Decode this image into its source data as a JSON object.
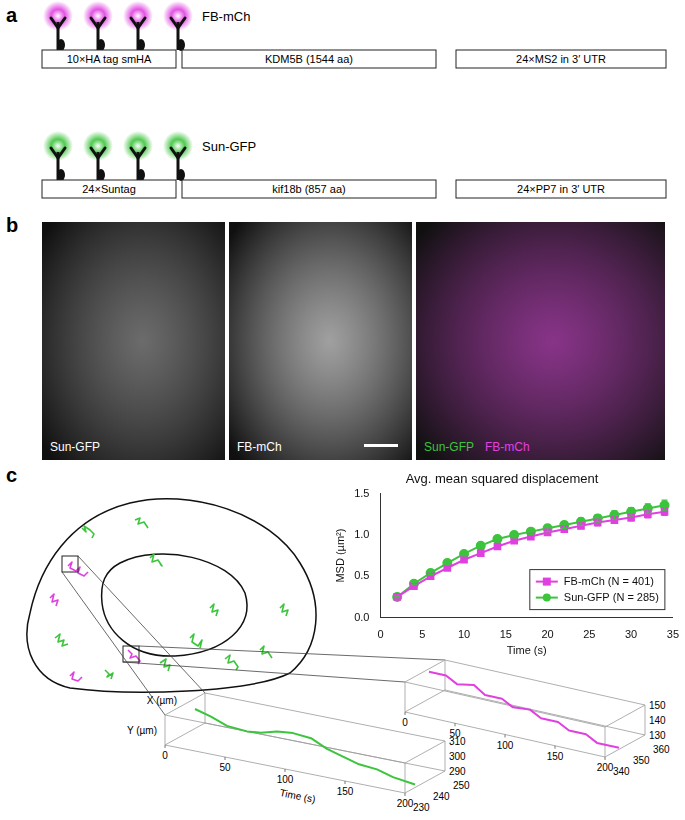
{
  "figure": {
    "a": {
      "label": "a",
      "constructs": [
        {
          "name": "FB-mCh",
          "color": "#e040e0",
          "probes": 4,
          "segments": [
            "10×HA tag smHA",
            "KDM5B (1544 aa)",
            "24×MS2 in 3′ UTR"
          ]
        },
        {
          "name": "Sun-GFP",
          "color": "#3cc43c",
          "probes": 4,
          "segments": [
            "24×Suntag",
            "kif18b (857 aa)",
            "24×PP7 in 3′ UTR"
          ]
        }
      ]
    },
    "b": {
      "label": "b",
      "images": [
        {
          "color": "#8a8a8a",
          "labels": [
            {
              "text": "Sun-GFP",
              "color": "#ffffff"
            }
          ]
        },
        {
          "color": "#d0d0d0",
          "labels": [
            {
              "text": "FB-mCh",
              "color": "#ffffff"
            }
          ]
        },
        {
          "color": "#b040b0",
          "labels": [
            {
              "text": "Sun-GFP",
              "color": "#3cc43c"
            },
            {
              "text": "FB-mCh",
              "color": "#e040e0"
            }
          ]
        }
      ]
    },
    "c": {
      "label": "c",
      "tracks": [
        {
          "color": "#e040e0",
          "x": [
            58,
            62,
            60,
            66,
            70,
            68,
            74,
            78
          ],
          "y": [
            78,
            74,
            80,
            83,
            79,
            85,
            88,
            84
          ]
        },
        {
          "color": "#e040e0",
          "x": [
            118,
            122,
            120,
            126,
            130,
            128
          ],
          "y": [
            162,
            166,
            170,
            168,
            173,
            176
          ]
        },
        {
          "color": "#e040e0",
          "x": [
            60,
            64,
            62,
            68,
            72
          ],
          "y": [
            188,
            184,
            191,
            193,
            189
          ]
        },
        {
          "color": "#e040e0",
          "x": [
            40,
            44,
            42,
            48,
            46
          ],
          "y": [
            110,
            106,
            114,
            112,
            118
          ]
        },
        {
          "color": "#3cc43c",
          "x": [
            72,
            76,
            74,
            80,
            84,
            82
          ],
          "y": [
            40,
            44,
            38,
            42,
            46,
            50
          ]
        },
        {
          "color": "#3cc43c",
          "x": [
            125,
            130,
            128,
            134,
            138
          ],
          "y": [
            32,
            30,
            36,
            34,
            40
          ]
        },
        {
          "color": "#3cc43c",
          "x": [
            140,
            144,
            142,
            148,
            152,
            150
          ],
          "y": [
            70,
            66,
            74,
            72,
            78,
            76
          ]
        },
        {
          "color": "#3cc43c",
          "x": [
            45,
            50,
            48,
            54,
            52,
            58
          ],
          "y": [
            150,
            146,
            154,
            152,
            158,
            156
          ]
        },
        {
          "color": "#3cc43c",
          "x": [
            150,
            156,
            154,
            160,
            158
          ],
          "y": [
            175,
            171,
            179,
            177,
            183
          ]
        },
        {
          "color": "#3cc43c",
          "x": [
            180,
            184,
            182,
            188,
            192,
            190
          ],
          "y": [
            150,
            146,
            154,
            158,
            152,
            160
          ]
        },
        {
          "color": "#3cc43c",
          "x": [
            200,
            204,
            202,
            208,
            206
          ],
          "y": [
            120,
            116,
            124,
            122,
            128
          ]
        },
        {
          "color": "#3cc43c",
          "x": [
            215,
            220,
            218,
            224,
            228,
            226
          ],
          "y": [
            171,
            167,
            175,
            173,
            179,
            182
          ]
        },
        {
          "color": "#3cc43c",
          "x": [
            250,
            254,
            252,
            258,
            262
          ],
          "y": [
            162,
            158,
            166,
            164,
            170
          ]
        },
        {
          "color": "#3cc43c",
          "x": [
            270,
            274,
            272,
            278,
            276
          ],
          "y": [
            120,
            116,
            124,
            122,
            128
          ]
        },
        {
          "color": "#3cc43c",
          "x": [
            95,
            99,
            97,
            103,
            101
          ],
          "y": [
            182,
            186,
            189,
            185,
            191
          ]
        }
      ],
      "insets": [
        {
          "color": "#e040e0",
          "time": [
            0,
            15,
            30,
            45,
            60,
            75,
            90,
            105,
            120,
            135,
            150,
            165,
            180,
            200
          ],
          "x": [
            352,
            353,
            351,
            352,
            350,
            351,
            349,
            350,
            348,
            349,
            347,
            348,
            346,
            347
          ],
          "y": [
            148,
            147,
            145,
            146,
            143,
            142,
            140,
            140,
            138,
            137,
            135,
            134,
            132,
            131
          ],
          "tlim": [
            0,
            200
          ],
          "tticks": [
            0,
            50,
            100,
            150,
            200
          ],
          "xlim": [
            340,
            360
          ],
          "xticks": [
            340,
            350,
            360
          ],
          "ylim": [
            130,
            150
          ],
          "yticks": [
            130,
            140,
            150
          ]
        },
        {
          "color": "#3cc43c",
          "time": [
            0,
            15,
            30,
            45,
            60,
            75,
            90,
            105,
            120,
            135,
            150,
            165,
            180,
            200
          ],
          "x": [
            245,
            244,
            243,
            244,
            242,
            241,
            240,
            240,
            239,
            238,
            237,
            237,
            236,
            235
          ],
          "y": [
            303,
            301,
            298,
            296,
            299,
            303,
            305,
            304,
            300,
            298,
            296,
            295,
            293,
            292
          ],
          "tlim": [
            0,
            200
          ],
          "tticks": [
            0,
            50,
            100,
            150,
            200
          ],
          "xlim": [
            230,
            250
          ],
          "xticks": [
            230,
            240,
            250
          ],
          "ylim": [
            290,
            310
          ],
          "yticks": [
            290,
            300,
            310
          ],
          "t_label": "Time (s)",
          "x_label": "X (µm)",
          "y_label": "Y (µm)"
        }
      ]
    }
  },
  "chart_data": {
    "type": "line",
    "title": "Avg. mean squared displacement",
    "x_label": "Time (s)",
    "y_label": "MSD (µm²)",
    "x": [
      2,
      4,
      6,
      8,
      10,
      12,
      14,
      16,
      18,
      20,
      22,
      24,
      26,
      28,
      30,
      32,
      34
    ],
    "xlim": [
      0,
      35
    ],
    "xticks": [
      0,
      5,
      10,
      15,
      20,
      25,
      30,
      35
    ],
    "ylim": [
      0,
      1.5
    ],
    "yticks": [
      {
        "value": 0,
        "label": "0.0"
      },
      0.5,
      {
        "value": 1,
        "label": "1.0"
      },
      1.5
    ],
    "grid": false,
    "legend": "lower right",
    "series": [
      {
        "name": "FB-mCh (N = 401)",
        "color": "#e040e0",
        "marker": "square",
        "values": [
          0.25,
          0.38,
          0.5,
          0.6,
          0.7,
          0.78,
          0.86,
          0.93,
          0.98,
          1.03,
          1.07,
          1.11,
          1.15,
          1.18,
          1.21,
          1.25,
          1.28
        ],
        "errors": [
          0.01,
          0.01,
          0.015,
          0.02,
          0.02,
          0.025,
          0.025,
          0.03,
          0.03,
          0.03,
          0.035,
          0.035,
          0.04,
          0.04,
          0.04,
          0.045,
          0.045
        ]
      },
      {
        "name": "Sun-GFP (N = 285)",
        "color": "#3cc43c",
        "marker": "circle",
        "values": [
          0.25,
          0.41,
          0.54,
          0.66,
          0.77,
          0.87,
          0.95,
          1.0,
          1.04,
          1.08,
          1.12,
          1.16,
          1.2,
          1.24,
          1.28,
          1.32,
          1.36
        ],
        "errors": [
          0.01,
          0.015,
          0.02,
          0.02,
          0.025,
          0.03,
          0.03,
          0.035,
          0.035,
          0.04,
          0.04,
          0.045,
          0.045,
          0.05,
          0.05,
          0.055,
          0.06
        ]
      }
    ]
  }
}
